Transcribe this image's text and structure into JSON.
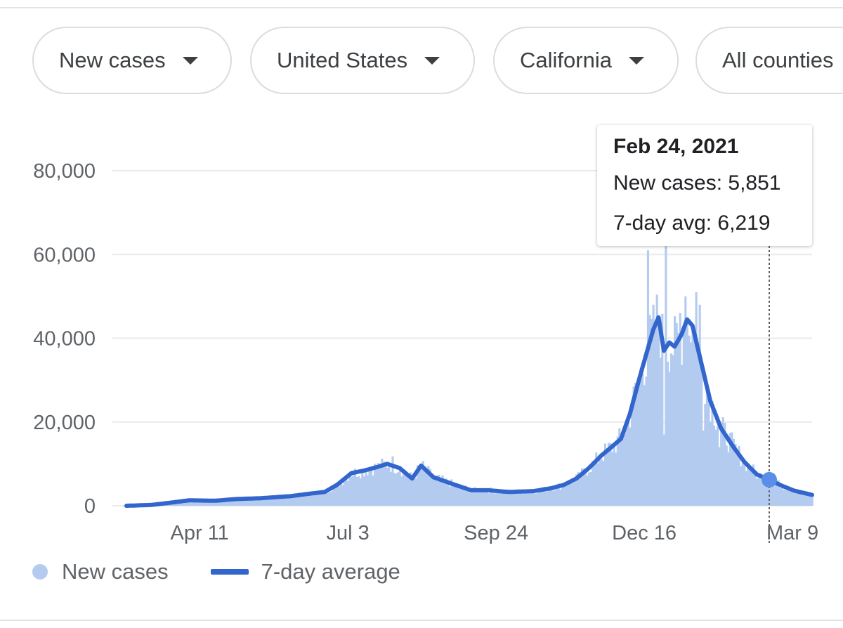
{
  "filters": [
    {
      "label": "New cases"
    },
    {
      "label": "United States"
    },
    {
      "label": "California"
    },
    {
      "label": "All counties"
    }
  ],
  "tooltip": {
    "date": "Feb 24, 2021",
    "new_cases": "New cases: 5,851",
    "avg": "7-day avg: 6,219"
  },
  "legend": {
    "new_cases": "New cases",
    "avg": "7-day average"
  },
  "colors": {
    "bars": "#b4cbf0",
    "line": "#3366cc",
    "grid": "#e8eaed",
    "tooltip_marker": "#5b8ee6"
  },
  "chart_data": {
    "type": "bar",
    "x_range": [
      "2020-03-01",
      "2021-03-20"
    ],
    "ylim": [
      0,
      80000
    ],
    "y_ticks": [
      {
        "value": 0,
        "label": "0"
      },
      {
        "value": 20000,
        "label": "20,000"
      },
      {
        "value": 40000,
        "label": "40,000"
      },
      {
        "value": 60000,
        "label": "60,000"
      },
      {
        "value": 80000,
        "label": "80,000"
      }
    ],
    "x_ticks": [
      {
        "date": "2020-04-11",
        "label": "Apr 11"
      },
      {
        "date": "2020-07-03",
        "label": "Jul 3"
      },
      {
        "date": "2020-09-24",
        "label": "Sep 24"
      },
      {
        "date": "2020-12-16",
        "label": "Dec 16"
      },
      {
        "date": "2021-03-09",
        "label": "Mar 9"
      }
    ],
    "series": [
      {
        "name": "7-day average",
        "kind": "line",
        "points": [
          [
            "2020-03-01",
            0
          ],
          [
            "2020-03-15",
            200
          ],
          [
            "2020-03-25",
            700
          ],
          [
            "2020-04-05",
            1300
          ],
          [
            "2020-04-20",
            1200
          ],
          [
            "2020-05-01",
            1600
          ],
          [
            "2020-05-15",
            1800
          ],
          [
            "2020-06-01",
            2300
          ],
          [
            "2020-06-10",
            2800
          ],
          [
            "2020-06-20",
            3300
          ],
          [
            "2020-06-27",
            5000
          ],
          [
            "2020-07-05",
            7800
          ],
          [
            "2020-07-12",
            8400
          ],
          [
            "2020-07-19",
            9200
          ],
          [
            "2020-07-25",
            10000
          ],
          [
            "2020-08-01",
            9000
          ],
          [
            "2020-08-08",
            6500
          ],
          [
            "2020-08-13",
            9600
          ],
          [
            "2020-08-20",
            6800
          ],
          [
            "2020-08-30",
            5300
          ],
          [
            "2020-09-10",
            3700
          ],
          [
            "2020-09-20",
            3700
          ],
          [
            "2020-10-01",
            3300
          ],
          [
            "2020-10-15",
            3500
          ],
          [
            "2020-10-25",
            4200
          ],
          [
            "2020-11-01",
            5000
          ],
          [
            "2020-11-08",
            6500
          ],
          [
            "2020-11-15",
            9000
          ],
          [
            "2020-11-22",
            12000
          ],
          [
            "2020-11-29",
            14500
          ],
          [
            "2020-12-03",
            16000
          ],
          [
            "2020-12-08",
            22000
          ],
          [
            "2020-12-13",
            30000
          ],
          [
            "2020-12-17",
            36000
          ],
          [
            "2020-12-21",
            42000
          ],
          [
            "2020-12-24",
            45000
          ],
          [
            "2020-12-27",
            37000
          ],
          [
            "2020-12-30",
            39000
          ],
          [
            "2021-01-02",
            38000
          ],
          [
            "2021-01-06",
            41000
          ],
          [
            "2021-01-09",
            44500
          ],
          [
            "2021-01-12",
            43000
          ],
          [
            "2021-01-17",
            34000
          ],
          [
            "2021-01-22",
            25000
          ],
          [
            "2021-01-28",
            18500
          ],
          [
            "2021-02-04",
            14000
          ],
          [
            "2021-02-10",
            10500
          ],
          [
            "2021-02-17",
            7500
          ],
          [
            "2021-02-24",
            6219
          ],
          [
            "2021-03-03",
            4800
          ],
          [
            "2021-03-10",
            3600
          ],
          [
            "2021-03-20",
            2600
          ]
        ]
      },
      {
        "name": "New cases",
        "kind": "bars",
        "spikes": [
          [
            "2020-07-28",
            11800
          ],
          [
            "2020-12-18",
            61000
          ],
          [
            "2020-12-21",
            48000
          ],
          [
            "2020-12-28",
            63000
          ],
          [
            "2021-01-05",
            46000
          ],
          [
            "2021-01-08",
            50000
          ],
          [
            "2021-01-14",
            51000
          ],
          [
            "2021-01-16",
            48000
          ]
        ],
        "dips": [
          [
            "2020-12-27",
            17000
          ],
          [
            "2021-01-18",
            18000
          ],
          [
            "2021-01-27",
            14000
          ]
        ]
      }
    ],
    "highlight": {
      "date": "2021-02-24",
      "new_cases": 5851,
      "avg": 6219
    }
  }
}
